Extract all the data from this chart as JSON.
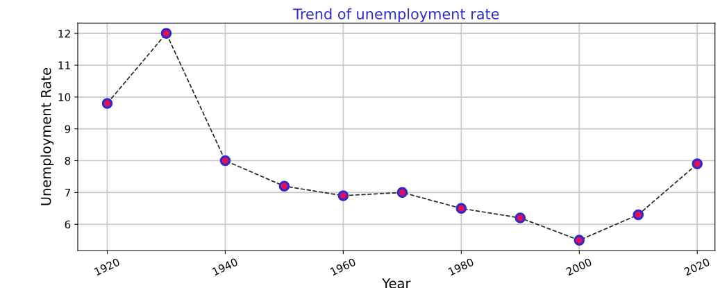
{
  "chart_data": {
    "type": "line",
    "title": "Trend of unemployment rate",
    "xlabel": "Year",
    "ylabel": "Unemployment Rate",
    "x": [
      1920,
      1930,
      1940,
      1950,
      1960,
      1970,
      1980,
      1990,
      2000,
      2010,
      2020
    ],
    "series": [
      {
        "color": "#e0105a",
        "values": [
          9.8,
          12.0,
          8.0,
          7.2,
          6.9,
          7.0,
          6.5,
          6.2,
          5.5,
          6.3,
          7.9
        ]
      }
    ],
    "xlim": [
      1915,
      2023
    ],
    "xticks": [
      1920,
      1940,
      1960,
      1980,
      2000,
      2020
    ],
    "ylim": [
      5.175,
      12.325
    ],
    "yticks": [
      6,
      7,
      8,
      9,
      10,
      11,
      12
    ],
    "grid": true,
    "marker": "circle",
    "line_style": "dashed"
  }
}
